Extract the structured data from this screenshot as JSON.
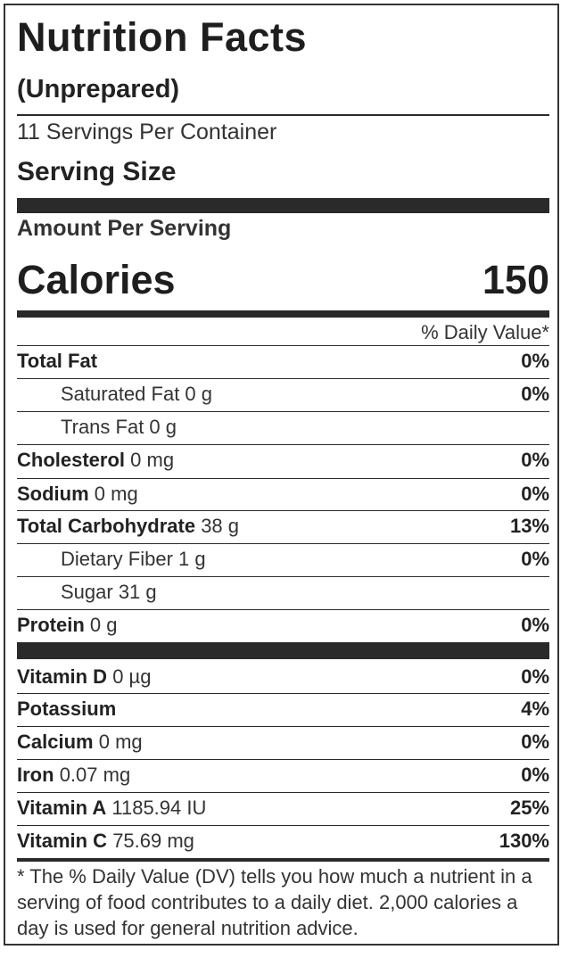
{
  "header": {
    "title": "Nutrition Facts",
    "subtitle": "(Unprepared)",
    "servings_per_container": "11 Servings Per Container",
    "serving_size_label": "Serving Size",
    "amount_per_serving": "Amount Per Serving",
    "calories_label": "Calories",
    "calories_value": "150",
    "daily_value_header": "% Daily Value*"
  },
  "nutrients": [
    {
      "name": "Total Fat",
      "amount": "",
      "pct": "0%"
    },
    {
      "name": "Saturated Fat 0 g",
      "amount": "",
      "pct": "0%"
    },
    {
      "name": "Trans Fat 0 g",
      "amount": "",
      "pct": ""
    },
    {
      "name": "Cholesterol",
      "amount": "0 mg",
      "pct": "0%"
    },
    {
      "name": "Sodium",
      "amount": "0 mg",
      "pct": "0%"
    },
    {
      "name": "Total Carbohydrate",
      "amount": "38 g",
      "pct": "13%"
    },
    {
      "name": "Dietary Fiber 1 g",
      "amount": "",
      "pct": "0%"
    },
    {
      "name": "Sugar 31 g",
      "amount": "",
      "pct": ""
    },
    {
      "name": "Protein",
      "amount": "0 g",
      "pct": "0%"
    }
  ],
  "vitamins": [
    {
      "name": "Vitamin D",
      "amount": "0 µg",
      "pct": "0%"
    },
    {
      "name": "Potassium",
      "amount": "",
      "pct": "4%"
    },
    {
      "name": "Calcium",
      "amount": "0 mg",
      "pct": "0%"
    },
    {
      "name": "Iron",
      "amount": "0.07 mg",
      "pct": "0%"
    },
    {
      "name": "Vitamin A",
      "amount": "1185.94 IU",
      "pct": "25%"
    },
    {
      "name": "Vitamin C",
      "amount": "75.69 mg",
      "pct": "130%"
    }
  ],
  "footnote": "* The % Daily Value (DV) tells you how much a nutrient in a serving of food contributes to a daily diet. 2,000 calories a day is used for general nutrition advice."
}
